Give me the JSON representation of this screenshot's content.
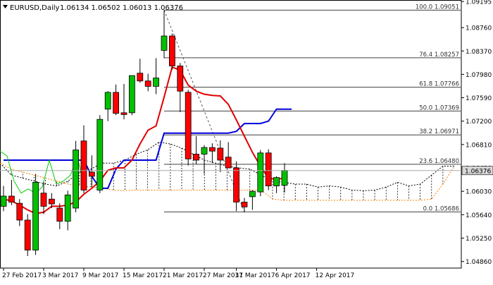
{
  "header": {
    "symbol": "EURUSD,Daily",
    "ohlc": "1.06134 1.06502 1.06013 1.06376",
    "icon": "collapse-triangle-icon"
  },
  "colors": {
    "up": "#00c000",
    "down": "#ff0000",
    "candle_outline": "#000000",
    "red_ma": "#e00000",
    "blue_ma": "#0000dd",
    "green_line": "#00cc00",
    "fib_lines": "#404040",
    "cloud_upper": "#000000",
    "cloud_lower": "#ff8000",
    "price_box": "#d8d8d8",
    "text": "#000000"
  },
  "chart_data": {
    "type": "candlestick",
    "title": "EURUSD,Daily",
    "last_price": "1.06376",
    "ylim": [
      1.0475,
      1.0922
    ],
    "y_ticks": [
      "1.09195",
      "1.08760",
      "1.08370",
      "1.07980",
      "1.07590",
      "1.07200",
      "1.06810",
      "1.06420",
      "1.06030",
      "1.05640",
      "1.05250",
      "1.04860"
    ],
    "x_labels": [
      "27 Feb 2017",
      "3 Mar 2017",
      "9 Mar 2017",
      "15 Mar 2017",
      "21 Mar 2017",
      "27 Mar 2017",
      "31 Mar 2017",
      "6 Apr 2017",
      "12 Apr 2017"
    ],
    "candles": [
      {
        "o": 1.0578,
        "h": 1.0612,
        "l": 1.057,
        "c": 1.0595
      },
      {
        "o": 1.0595,
        "h": 1.0622,
        "l": 1.058,
        "c": 1.0585
      },
      {
        "o": 1.0583,
        "h": 1.059,
        "l": 1.0545,
        "c": 1.0555
      },
      {
        "o": 1.0555,
        "h": 1.0565,
        "l": 1.0495,
        "c": 1.0505
      },
      {
        "o": 1.0505,
        "h": 1.0632,
        "l": 1.0497,
        "c": 1.0618
      },
      {
        "o": 1.06,
        "h": 1.0618,
        "l": 1.0565,
        "c": 1.0578
      },
      {
        "o": 1.059,
        "h": 1.06,
        "l": 1.0575,
        "c": 1.0582
      },
      {
        "o": 1.0575,
        "h": 1.0583,
        "l": 1.054,
        "c": 1.0553
      },
      {
        "o": 1.0553,
        "h": 1.0604,
        "l": 1.0538,
        "c": 1.0597
      },
      {
        "o": 1.0575,
        "h": 1.0687,
        "l": 1.0568,
        "c": 1.0672
      },
      {
        "o": 1.0687,
        "h": 1.0713,
        "l": 1.06,
        "c": 1.0605
      },
      {
        "o": 1.0635,
        "h": 1.0663,
        "l": 1.061,
        "c": 1.0628
      },
      {
        "o": 1.0605,
        "h": 1.073,
        "l": 1.06,
        "c": 1.0723
      },
      {
        "o": 1.074,
        "h": 1.077,
        "l": 1.072,
        "c": 1.0768
      },
      {
        "o": 1.0768,
        "h": 1.0781,
        "l": 1.073,
        "c": 1.0733
      },
      {
        "o": 1.0734,
        "h": 1.0782,
        "l": 1.0723,
        "c": 1.0731
      },
      {
        "o": 1.0734,
        "h": 1.0796,
        "l": 1.073,
        "c": 1.0796
      },
      {
        "o": 1.08,
        "h": 1.0824,
        "l": 1.0784,
        "c": 1.0787
      },
      {
        "o": 1.0787,
        "h": 1.0799,
        "l": 1.077,
        "c": 1.0778
      },
      {
        "o": 1.0778,
        "h": 1.0825,
        "l": 1.0765,
        "c": 1.0792
      },
      {
        "o": 1.0838,
        "h": 1.0905,
        "l": 1.0825,
        "c": 1.0862
      },
      {
        "o": 1.0862,
        "h": 1.0866,
        "l": 1.0806,
        "c": 1.0812
      },
      {
        "o": 1.0812,
        "h": 1.0817,
        "l": 1.0735,
        "c": 1.077
      },
      {
        "o": 1.0768,
        "h": 1.0772,
        "l": 1.0646,
        "c": 1.0657
      },
      {
        "o": 1.0665,
        "h": 1.0695,
        "l": 1.0648,
        "c": 1.0655
      },
      {
        "o": 1.0665,
        "h": 1.068,
        "l": 1.0632,
        "c": 1.0676
      },
      {
        "o": 1.0676,
        "h": 1.0683,
        "l": 1.065,
        "c": 1.067
      },
      {
        "o": 1.0675,
        "h": 1.0688,
        "l": 1.0635,
        "c": 1.0655
      },
      {
        "o": 1.066,
        "h": 1.0685,
        "l": 1.0642,
        "c": 1.0642
      },
      {
        "o": 1.0642,
        "h": 1.0653,
        "l": 1.057,
        "c": 1.0585
      },
      {
        "o": 1.0585,
        "h": 1.0592,
        "l": 1.0568,
        "c": 1.0577
      },
      {
        "o": 1.0594,
        "h": 1.0605,
        "l": 1.0572,
        "c": 1.0603
      },
      {
        "o": 1.0602,
        "h": 1.0672,
        "l": 1.0595,
        "c": 1.0667
      },
      {
        "o": 1.0667,
        "h": 1.0673,
        "l": 1.0605,
        "c": 1.0612
      },
      {
        "o": 1.0612,
        "h": 1.0628,
        "l": 1.06,
        "c": 1.0626
      },
      {
        "o": 1.0613,
        "h": 1.065,
        "l": 1.0601,
        "c": 1.0638
      }
    ],
    "fib_levels": [
      {
        "label": "100.0 1.09051",
        "price": 1.09051
      },
      {
        "label": "76.4 1.08257",
        "price": 1.08257
      },
      {
        "label": "61.8 1.07766",
        "price": 1.07766
      },
      {
        "label": "50.0 1.07369",
        "price": 1.07369
      },
      {
        "label": "38.2 1.06971",
        "price": 1.06971
      },
      {
        "label": "23.6 1.06480",
        "price": 1.0648
      },
      {
        "label": "0.0 1.05686",
        "price": 1.05686
      }
    ],
    "series": [
      {
        "key": "red_ma",
        "values": [
          1.059,
          1.0587,
          1.058,
          1.0572,
          1.0566,
          1.0568,
          1.0578,
          1.0578,
          1.058,
          1.0585,
          1.0598,
          1.0608,
          1.062,
          1.0638,
          1.0642,
          1.0642,
          1.0655,
          1.0682,
          1.0705,
          1.0712,
          1.076,
          1.081,
          1.0805,
          1.078,
          1.077,
          1.0765,
          1.0763,
          1.0762,
          1.0748,
          1.0722,
          1.0695,
          1.0668,
          1.0645,
          1.0625,
          1.0623,
          1.0625
        ]
      },
      {
        "key": "blue_ma",
        "values": [
          1.0655,
          1.0655,
          1.0655,
          1.0655,
          1.0655,
          1.0655,
          1.0655,
          1.0655,
          1.0655,
          1.0655,
          1.0655,
          1.0628,
          1.0608,
          1.0608,
          1.064,
          1.0655,
          1.0655,
          1.0655,
          1.0655,
          1.0655,
          1.07,
          1.07,
          1.07,
          1.07,
          1.07,
          1.07,
          1.07,
          1.07,
          1.07,
          1.0703,
          1.0716,
          1.0716,
          1.0716,
          1.072,
          1.074,
          1.074
        ]
      },
      {
        "key": "green_line",
        "values": [
          1.067,
          1.0662,
          1.062,
          1.06,
          1.0607,
          1.06,
          1.061,
          1.0655,
          1.0615,
          1.062,
          1.063,
          1.066,
          1.0608
        ]
      },
      {
        "key": "cloud_upper",
        "values": [
          1.065,
          1.063,
          1.0625,
          1.062,
          1.0615,
          1.0612,
          1.062,
          1.0635,
          1.064,
          1.065,
          1.065,
          1.0655,
          1.0665,
          1.0672,
          1.0685,
          1.0682,
          1.0675,
          1.0665,
          1.0655,
          1.065,
          1.0645,
          1.0642,
          1.064,
          1.063,
          1.062,
          1.0618,
          1.0615,
          1.0615,
          1.061,
          1.0612,
          1.061,
          1.0605,
          1.0604,
          1.0605,
          1.061,
          1.0618,
          1.0612,
          1.0615,
          1.063,
          1.0645,
          1.0645
        ]
      },
      {
        "key": "cloud_lower",
        "values": [
          1.065,
          1.064,
          1.0635,
          1.063,
          1.0625,
          1.062,
          1.0615,
          1.0612,
          1.061,
          1.0608,
          1.0605,
          1.0604,
          1.0605,
          1.0605,
          1.0605,
          1.0605,
          1.0605,
          1.0605,
          1.0605,
          1.0605,
          1.0605,
          1.0605,
          1.0605,
          1.0605,
          1.059,
          1.0588,
          1.0588,
          1.0588,
          1.0588,
          1.0588,
          1.0588,
          1.0588,
          1.0588,
          1.0588,
          1.0588,
          1.0588,
          1.0588,
          1.0588,
          1.059,
          1.0615,
          1.0645
        ]
      }
    ]
  }
}
